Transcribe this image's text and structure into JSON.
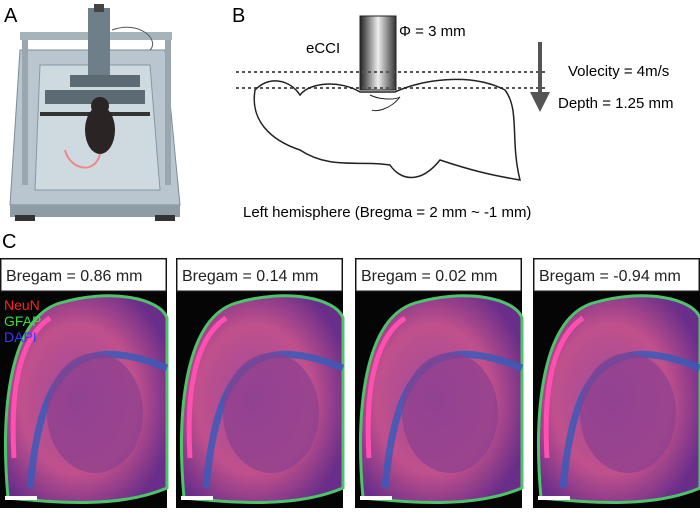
{
  "panels": {
    "a": {
      "label": "A"
    },
    "b": {
      "label": "B",
      "diameter": "Φ = 3 mm",
      "device": "eCCI",
      "velocity": "Volecity = 4m/s",
      "depth": "Depth = 1.25 mm",
      "caption": "Left hemisphere (Bregma = 2 mm ~ -1 mm)"
    },
    "c": {
      "label": "C",
      "sections": [
        "Bregam = 0.86 mm",
        "Bregam = 0.14 mm",
        "Bregam = 0.02 mm",
        "Bregam = -0.94 mm"
      ],
      "stains": [
        "NeuN",
        "GFAP",
        "DAPI"
      ]
    }
  }
}
